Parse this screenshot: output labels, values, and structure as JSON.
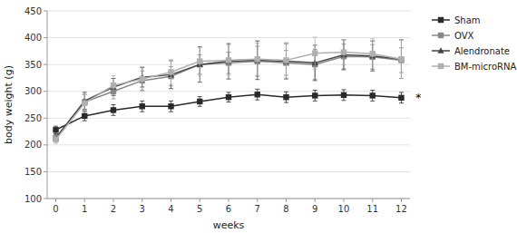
{
  "chart_data": {
    "type": "line",
    "x": [
      0,
      1,
      2,
      3,
      4,
      5,
      6,
      7,
      8,
      9,
      10,
      11,
      12
    ],
    "xlabel": "weeks",
    "ylabel": "body weight (g)",
    "xlim": [
      -0.3,
      12.3
    ],
    "xticks": [
      0,
      1,
      2,
      3,
      4,
      5,
      6,
      7,
      8,
      9,
      10,
      11,
      12
    ],
    "ylim": [
      100,
      450
    ],
    "yticks": [
      100,
      150,
      200,
      250,
      300,
      350,
      400,
      450
    ],
    "grid": true,
    "legend": "right",
    "series": [
      {
        "name": "Sham",
        "color": "#2a2a2a",
        "marker": "square",
        "values": [
          228,
          254,
          265,
          272,
          272,
          281,
          289,
          294,
          289,
          292,
          293,
          292,
          288
        ],
        "errors": [
          7,
          9,
          10,
          10,
          10,
          9,
          9,
          10,
          10,
          10,
          10,
          10,
          10
        ]
      },
      {
        "name": "OVX",
        "color": "#888888",
        "marker": "square",
        "values": [
          213,
          280,
          300,
          320,
          328,
          350,
          353,
          356,
          353,
          350,
          365,
          364,
          358
        ],
        "errors": [
          7,
          14,
          14,
          18,
          18,
          18,
          20,
          28,
          23,
          28,
          23,
          23,
          23
        ]
      },
      {
        "name": "Alendronate",
        "color": "#444444",
        "marker": "triangle",
        "values": [
          213,
          282,
          308,
          326,
          331,
          350,
          356,
          358,
          356,
          353,
          368,
          366,
          360
        ],
        "errors": [
          7,
          16,
          16,
          18,
          26,
          33,
          33,
          36,
          33,
          33,
          28,
          28,
          36
        ]
      },
      {
        "name": "BM-microRNA",
        "color": "#b0b0b0",
        "marker": "square",
        "values": [
          210,
          278,
          311,
          323,
          336,
          356,
          358,
          360,
          358,
          371,
          373,
          370,
          360
        ],
        "errors": [
          7,
          16,
          18,
          23,
          23,
          26,
          28,
          30,
          33,
          30,
          23,
          28,
          36
        ]
      }
    ],
    "annotations": [
      {
        "text": "*",
        "x": 12.5,
        "y": 288
      }
    ]
  }
}
